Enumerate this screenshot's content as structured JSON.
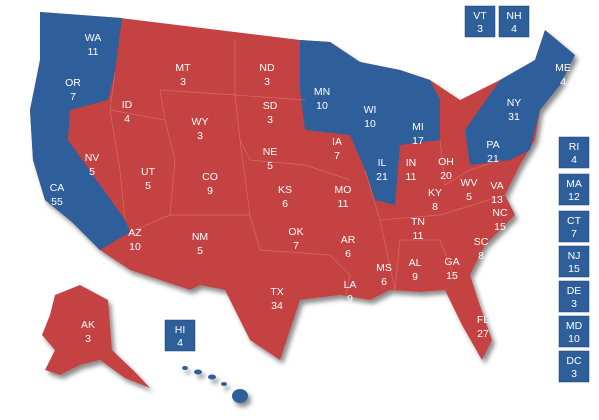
{
  "map": {
    "red_color": "#c44343",
    "blue_color": "#2f5f9a",
    "states": [
      {
        "abbr": "WA",
        "votes": "11",
        "color": "#2f5f9a"
      },
      {
        "abbr": "OR",
        "votes": "7",
        "color": "#2f5f9a"
      },
      {
        "abbr": "CA",
        "votes": "55",
        "color": "#2f5f9a"
      },
      {
        "abbr": "NV",
        "votes": "5",
        "color": "#c44343"
      },
      {
        "abbr": "ID",
        "votes": "4",
        "color": "#c44343"
      },
      {
        "abbr": "MT",
        "votes": "3",
        "color": "#c44343"
      },
      {
        "abbr": "WY",
        "votes": "3",
        "color": "#c44343"
      },
      {
        "abbr": "UT",
        "votes": "5",
        "color": "#c44343"
      },
      {
        "abbr": "CO",
        "votes": "9",
        "color": "#c44343"
      },
      {
        "abbr": "AZ",
        "votes": "10",
        "color": "#c44343"
      },
      {
        "abbr": "NM",
        "votes": "5",
        "color": "#c44343"
      },
      {
        "abbr": "ND",
        "votes": "3",
        "color": "#c44343"
      },
      {
        "abbr": "SD",
        "votes": "3",
        "color": "#c44343"
      },
      {
        "abbr": "NE",
        "votes": "5",
        "color": "#c44343"
      },
      {
        "abbr": "KS",
        "votes": "6",
        "color": "#c44343"
      },
      {
        "abbr": "OK",
        "votes": "7",
        "color": "#c44343"
      },
      {
        "abbr": "TX",
        "votes": "34",
        "color": "#c44343"
      },
      {
        "abbr": "MN",
        "votes": "10",
        "color": "#2f5f9a"
      },
      {
        "abbr": "IA",
        "votes": "7",
        "color": "#c44343"
      },
      {
        "abbr": "MO",
        "votes": "11",
        "color": "#c44343"
      },
      {
        "abbr": "AR",
        "votes": "6",
        "color": "#c44343"
      },
      {
        "abbr": "LA",
        "votes": "9",
        "color": "#c44343"
      },
      {
        "abbr": "WI",
        "votes": "10",
        "color": "#2f5f9a"
      },
      {
        "abbr": "IL",
        "votes": "21",
        "color": "#2f5f9a"
      },
      {
        "abbr": "MI",
        "votes": "17",
        "color": "#2f5f9a"
      },
      {
        "abbr": "IN",
        "votes": "11",
        "color": "#c44343"
      },
      {
        "abbr": "OH",
        "votes": "20",
        "color": "#c44343"
      },
      {
        "abbr": "KY",
        "votes": "8",
        "color": "#c44343"
      },
      {
        "abbr": "TN",
        "votes": "11",
        "color": "#c44343"
      },
      {
        "abbr": "MS",
        "votes": "6",
        "color": "#c44343"
      },
      {
        "abbr": "AL",
        "votes": "9",
        "color": "#c44343"
      },
      {
        "abbr": "GA",
        "votes": "15",
        "color": "#c44343"
      },
      {
        "abbr": "FL",
        "votes": "27",
        "color": "#c44343"
      },
      {
        "abbr": "SC",
        "votes": "8",
        "color": "#c44343"
      },
      {
        "abbr": "NC",
        "votes": "15",
        "color": "#c44343"
      },
      {
        "abbr": "VA",
        "votes": "13",
        "color": "#c44343"
      },
      {
        "abbr": "WV",
        "votes": "5",
        "color": "#c44343"
      },
      {
        "abbr": "PA",
        "votes": "21",
        "color": "#2f5f9a"
      },
      {
        "abbr": "NY",
        "votes": "31",
        "color": "#2f5f9a"
      },
      {
        "abbr": "ME",
        "votes": "4",
        "color": "#2f5f9a"
      },
      {
        "abbr": "AK",
        "votes": "3",
        "color": "#c44343"
      }
    ],
    "boxes": [
      {
        "abbr": "VT",
        "votes": "3",
        "color": "#2f5f9a"
      },
      {
        "abbr": "NH",
        "votes": "4",
        "color": "#2f5f9a"
      },
      {
        "abbr": "RI",
        "votes": "4",
        "color": "#2f5f9a"
      },
      {
        "abbr": "MA",
        "votes": "12",
        "color": "#2f5f9a"
      },
      {
        "abbr": "CT",
        "votes": "7",
        "color": "#2f5f9a"
      },
      {
        "abbr": "NJ",
        "votes": "15",
        "color": "#2f5f9a"
      },
      {
        "abbr": "DE",
        "votes": "3",
        "color": "#2f5f9a"
      },
      {
        "abbr": "MD",
        "votes": "10",
        "color": "#2f5f9a"
      },
      {
        "abbr": "DC",
        "votes": "3",
        "color": "#2f5f9a"
      },
      {
        "abbr": "HI",
        "votes": "4",
        "color": "#2f5f9a"
      }
    ]
  }
}
